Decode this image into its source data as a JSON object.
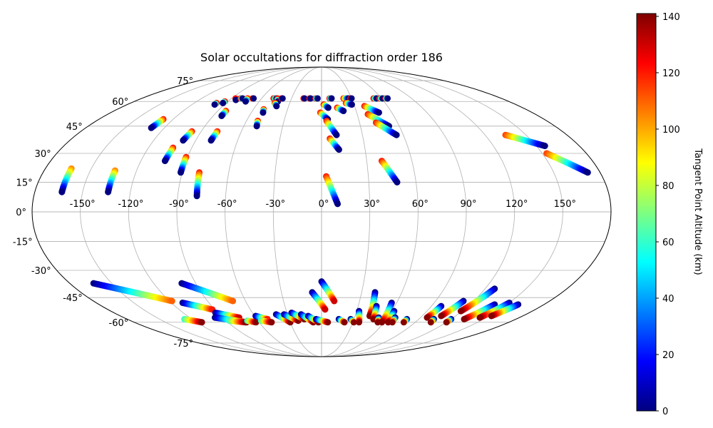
{
  "chart_data": {
    "type": "scatter",
    "projection": "mollweide",
    "title": "Solar occultations for diffraction order 186",
    "xlabel": "",
    "ylabel": "",
    "grid": true,
    "lon_ticks": [
      -150,
      -120,
      -90,
      -60,
      -30,
      0,
      30,
      60,
      90,
      120,
      150
    ],
    "lon_tick_labels": [
      "-150°",
      "-120°",
      "-90°",
      "-60°",
      "-30°",
      "0°",
      "30°",
      "60°",
      "90°",
      "120°",
      "150°"
    ],
    "lat_ticks": [
      -75,
      -60,
      -45,
      -30,
      -15,
      0,
      15,
      30,
      45,
      60,
      75
    ],
    "lat_tick_labels": [
      "-75°",
      "-60°",
      "-45°",
      "-30°",
      "-15°",
      "0°",
      "15°",
      "30°",
      "45°",
      "60°",
      "75°"
    ],
    "colorbar": {
      "label": "Tangent Point Altitude (km)",
      "min": 0,
      "max": 141,
      "ticks": [
        0,
        20,
        40,
        60,
        80,
        100,
        120,
        140
      ],
      "tick_labels": [
        "0",
        "20",
        "40",
        "60",
        "80",
        "100",
        "120",
        "140"
      ],
      "colormap": "jet"
    },
    "tracks": [
      {
        "start": [
          -163,
          22
        ],
        "end": [
          -163,
          10
        ],
        "alt_start": 105,
        "alt_end": 0
      },
      {
        "start": [
          -134,
          21
        ],
        "end": [
          -134,
          10
        ],
        "alt_start": 105,
        "alt_end": 0
      },
      {
        "start": [
          -128,
          49
        ],
        "end": [
          -130,
          44
        ],
        "alt_start": 120,
        "alt_end": 0
      },
      {
        "start": [
          -103,
          33
        ],
        "end": [
          -104,
          26
        ],
        "alt_start": 120,
        "alt_end": 0
      },
      {
        "start": [
          -97,
          42
        ],
        "end": [
          -99,
          37
        ],
        "alt_start": 120,
        "alt_end": 0
      },
      {
        "start": [
          -91,
          28
        ],
        "end": [
          -91,
          20
        ],
        "alt_start": 120,
        "alt_end": 0
      },
      {
        "start": [
          -83,
          54
        ],
        "end": [
          -83,
          51
        ],
        "alt_start": 120,
        "alt_end": 0
      },
      {
        "start": [
          -78,
          42
        ],
        "end": [
          -79,
          37
        ],
        "alt_start": 120,
        "alt_end": 0
      },
      {
        "start": [
          -79,
          20
        ],
        "end": [
          -78,
          8
        ],
        "alt_start": 120,
        "alt_end": 0
      },
      {
        "start": [
          -99,
          59
        ],
        "end": [
          -99,
          58
        ],
        "alt_start": 120,
        "alt_end": 0
      },
      {
        "start": [
          -93,
          60
        ],
        "end": [
          -93,
          59
        ],
        "alt_start": 120,
        "alt_end": 0
      },
      {
        "start": [
          -86,
          62
        ],
        "end": [
          -84,
          61
        ],
        "alt_start": 120,
        "alt_end": 0
      },
      {
        "start": [
          -81,
          62
        ],
        "end": [
          -79,
          62
        ],
        "alt_start": 120,
        "alt_end": 0
      },
      {
        "start": [
          -74,
          62
        ],
        "end": [
          -73,
          60
        ],
        "alt_start": 120,
        "alt_end": 0
      },
      {
        "start": [
          -69,
          62
        ],
        "end": [
          -68,
          62
        ],
        "alt_start": 120,
        "alt_end": 0
      },
      {
        "start": [
          -51,
          55
        ],
        "end": [
          -50,
          53
        ],
        "alt_start": 120,
        "alt_end": 0
      },
      {
        "start": [
          -51,
          48
        ],
        "end": [
          -50,
          45
        ],
        "alt_start": 120,
        "alt_end": 0
      },
      {
        "start": [
          -48,
          62
        ],
        "end": [
          -45,
          62
        ],
        "alt_start": 120,
        "alt_end": 0
      },
      {
        "start": [
          -44,
          62
        ],
        "end": [
          -42,
          60
        ],
        "alt_start": 120,
        "alt_end": 0
      },
      {
        "start": [
          -44,
          59
        ],
        "end": [
          -41,
          57
        ],
        "alt_start": 120,
        "alt_end": 0
      },
      {
        "start": [
          -40,
          62
        ],
        "end": [
          -39,
          62
        ],
        "alt_start": 120,
        "alt_end": 0
      },
      {
        "start": [
          -18,
          62
        ],
        "end": [
          -17,
          62
        ],
        "alt_start": 120,
        "alt_end": 0
      },
      {
        "start": [
          -12,
          62
        ],
        "end": [
          -11,
          62
        ],
        "alt_start": 120,
        "alt_end": 0
      },
      {
        "start": [
          -6,
          62
        ],
        "end": [
          -4,
          62
        ],
        "alt_start": 120,
        "alt_end": 0
      },
      {
        "start": [
          8,
          62
        ],
        "end": [
          10,
          62
        ],
        "alt_start": 120,
        "alt_end": 0
      },
      {
        "start": [
          22,
          62
        ],
        "end": [
          27,
          62
        ],
        "alt_start": 120,
        "alt_end": 0
      },
      {
        "start": [
          29,
          62
        ],
        "end": [
          30,
          62
        ],
        "alt_start": 120,
        "alt_end": 0
      },
      {
        "start": [
          52,
          62
        ],
        "end": [
          55,
          62
        ],
        "alt_start": 120,
        "alt_end": 0
      },
      {
        "start": [
          58,
          62
        ],
        "end": [
          61,
          62
        ],
        "alt_start": 120,
        "alt_end": 0
      },
      {
        "start": [
          64,
          62
        ],
        "end": [
          66,
          62
        ],
        "alt_start": 120,
        "alt_end": 0
      },
      {
        "start": [
          2,
          58
        ],
        "end": [
          6,
          56
        ],
        "alt_start": 120,
        "alt_end": 0
      },
      {
        "start": [
          14,
          56
        ],
        "end": [
          19,
          54
        ],
        "alt_start": 120,
        "alt_end": 0
      },
      {
        "start": [
          23,
          59
        ],
        "end": [
          28,
          58
        ],
        "alt_start": 120,
        "alt_end": 0
      },
      {
        "start": [
          39,
          57
        ],
        "end": [
          49,
          53
        ],
        "alt_start": 120,
        "alt_end": 0
      },
      {
        "start": [
          39,
          52
        ],
        "end": [
          52,
          45
        ],
        "alt_start": 120,
        "alt_end": 0
      },
      {
        "start": [
          -1,
          53
        ],
        "end": [
          5,
          49
        ],
        "alt_start": 120,
        "alt_end": 0
      },
      {
        "start": [
          4,
          48
        ],
        "end": [
          11,
          40
        ],
        "alt_start": 120,
        "alt_end": 0
      },
      {
        "start": [
          6,
          38
        ],
        "end": [
          12,
          32
        ],
        "alt_start": 120,
        "alt_end": 0
      },
      {
        "start": [
          43,
          47
        ],
        "end": [
          55,
          40
        ],
        "alt_start": 120,
        "alt_end": 0
      },
      {
        "start": [
          3,
          18
        ],
        "end": [
          10,
          4
        ],
        "alt_start": 120,
        "alt_end": 0
      },
      {
        "start": [
          40,
          26
        ],
        "end": [
          48,
          15
        ],
        "alt_start": 120,
        "alt_end": 0
      },
      {
        "start": [
          135,
          40
        ],
        "end": [
          156,
          34
        ],
        "alt_start": 115,
        "alt_end": 0
      },
      {
        "start": [
          153,
          30
        ],
        "end": [
          172,
          20
        ],
        "alt_start": 115,
        "alt_end": 0
      },
      {
        "start": [
          -163,
          -37
        ],
        "end": [
          -118,
          -47
        ],
        "alt_start": 0,
        "alt_end": 110
      },
      {
        "start": [
          -100,
          -37
        ],
        "end": [
          -70,
          -47
        ],
        "alt_start": 0,
        "alt_end": 110
      },
      {
        "start": [
          -111,
          -48
        ],
        "end": [
          -92,
          -52
        ],
        "alt_start": 0,
        "alt_end": 120
      },
      {
        "start": [
          -92,
          -54
        ],
        "end": [
          -75,
          -57
        ],
        "alt_start": 0,
        "alt_end": 130
      },
      {
        "start": [
          -97,
          -57
        ],
        "end": [
          -72,
          -60
        ],
        "alt_start": 0,
        "alt_end": 135
      },
      {
        "start": [
          -127,
          -58
        ],
        "end": [
          -115,
          -60
        ],
        "alt_start": 60,
        "alt_end": 140
      },
      {
        "start": [
          -87,
          -59
        ],
        "end": [
          -73,
          -60
        ],
        "alt_start": 60,
        "alt_end": 140
      },
      {
        "start": [
          -70,
          -59
        ],
        "end": [
          -63,
          -60
        ],
        "alt_start": 60,
        "alt_end": 140
      },
      {
        "start": [
          -59,
          -56
        ],
        "end": [
          -50,
          -58
        ],
        "alt_start": 0,
        "alt_end": 120
      },
      {
        "start": [
          -57,
          -59
        ],
        "end": [
          -48,
          -60
        ],
        "alt_start": 60,
        "alt_end": 140
      },
      {
        "start": [
          -40,
          -55
        ],
        "end": [
          -30,
          -60
        ],
        "alt_start": 0,
        "alt_end": 140
      },
      {
        "start": [
          -33,
          -55
        ],
        "end": [
          -22,
          -59
        ],
        "alt_start": 0,
        "alt_end": 140
      },
      {
        "start": [
          -26,
          -54
        ],
        "end": [
          -16,
          -58
        ],
        "alt_start": 0,
        "alt_end": 140
      },
      {
        "start": [
          -18,
          -55
        ],
        "end": [
          -8,
          -60
        ],
        "alt_start": 0,
        "alt_end": 140
      },
      {
        "start": [
          -12,
          -56
        ],
        "end": [
          -3,
          -60
        ],
        "alt_start": 0,
        "alt_end": 140
      },
      {
        "start": [
          -5,
          -58
        ],
        "end": [
          6,
          -60
        ],
        "alt_start": 0,
        "alt_end": 140
      },
      {
        "start": [
          -7,
          -42
        ],
        "end": [
          3,
          -52
        ],
        "alt_start": 0,
        "alt_end": 130
      },
      {
        "start": [
          0,
          -36
        ],
        "end": [
          10,
          -47
        ],
        "alt_start": 0,
        "alt_end": 130
      },
      {
        "start": [
          16,
          -58
        ],
        "end": [
          22,
          -60
        ],
        "alt_start": 0,
        "alt_end": 140
      },
      {
        "start": [
          27,
          -58
        ],
        "end": [
          31,
          -60
        ],
        "alt_start": 0,
        "alt_end": 140
      },
      {
        "start": [
          32,
          -53
        ],
        "end": [
          36,
          -60
        ],
        "alt_start": 0,
        "alt_end": 140
      },
      {
        "start": [
          40,
          -42
        ],
        "end": [
          43,
          -56
        ],
        "alt_start": 0,
        "alt_end": 140
      },
      {
        "start": [
          45,
          -50
        ],
        "end": [
          48,
          -58
        ],
        "alt_start": 0,
        "alt_end": 140
      },
      {
        "start": [
          52,
          -57
        ],
        "end": [
          54,
          -60
        ],
        "alt_start": 0,
        "alt_end": 140
      },
      {
        "start": [
          56,
          -48
        ],
        "end": [
          58,
          -60
        ],
        "alt_start": 0,
        "alt_end": 140
      },
      {
        "start": [
          62,
          -53
        ],
        "end": [
          64,
          -60
        ],
        "alt_start": 0,
        "alt_end": 140
      },
      {
        "start": [
          67,
          -57
        ],
        "end": [
          68,
          -60
        ],
        "alt_start": 0,
        "alt_end": 140
      },
      {
        "start": [
          79,
          -58
        ],
        "end": [
          79,
          -60
        ],
        "alt_start": 0,
        "alt_end": 140
      },
      {
        "start": [
          98,
          -50
        ],
        "end": [
          96,
          -57
        ],
        "alt_start": 0,
        "alt_end": 140
      },
      {
        "start": [
          104,
          -58
        ],
        "end": [
          105,
          -60
        ],
        "alt_start": 0,
        "alt_end": 140
      },
      {
        "start": [
          112,
          -47
        ],
        "end": [
          107,
          -56
        ],
        "alt_start": 0,
        "alt_end": 140
      },
      {
        "start": [
          120,
          -58
        ],
        "end": [
          120,
          -60
        ],
        "alt_start": 0,
        "alt_end": 140
      },
      {
        "start": [
          127,
          -40
        ],
        "end": [
          119,
          -53
        ],
        "alt_start": 0,
        "alt_end": 140
      },
      {
        "start": [
          140,
          -49
        ],
        "end": [
          132,
          -58
        ],
        "alt_start": 0,
        "alt_end": 140
      },
      {
        "start": [
          150,
          -48
        ],
        "end": [
          144,
          -57
        ],
        "alt_start": 0,
        "alt_end": 140
      },
      {
        "start": [
          159,
          -49
        ],
        "end": [
          152,
          -56
        ],
        "alt_start": 0,
        "alt_end": 140
      }
    ]
  }
}
